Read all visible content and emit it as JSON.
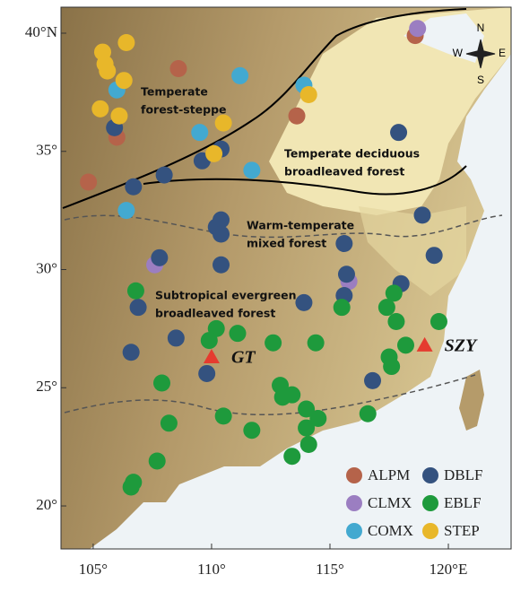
{
  "chart_data": {
    "type": "scatter",
    "xlim": [
      103.64,
      122.65
    ],
    "ylim": [
      18.18,
      41.1
    ],
    "xticks": [
      {
        "value": 105,
        "label": "105°"
      },
      {
        "value": 110,
        "label": "110°"
      },
      {
        "value": 115,
        "label": "115°"
      },
      {
        "value": 120,
        "label": "120°E"
      }
    ],
    "yticks": [
      {
        "value": 20,
        "label": "20°"
      },
      {
        "value": 25,
        "label": "25°"
      },
      {
        "value": 30,
        "label": "30°"
      },
      {
        "value": 35,
        "label": "35°"
      },
      {
        "value": 40,
        "label": "40°N"
      }
    ],
    "series": [
      {
        "name": "ALPM",
        "color": "#b5634a",
        "x": [
          118.6,
          108.6,
          106.0,
          113.6,
          104.8
        ],
        "y": [
          39.9,
          38.5,
          35.6,
          36.5,
          33.7
        ]
      },
      {
        "name": "CLMX",
        "color": "#9b7ec1",
        "x": [
          118.7,
          107.6,
          115.8
        ],
        "y": [
          40.2,
          30.2,
          29.5
        ]
      },
      {
        "name": "COMX",
        "color": "#43a9d0",
        "x": [
          106.0,
          111.2,
          113.9,
          109.5,
          111.7,
          106.4
        ],
        "y": [
          37.6,
          38.2,
          37.8,
          35.8,
          34.2,
          32.5
        ]
      },
      {
        "name": "DBLF",
        "color": "#34527f",
        "x": [
          105.9,
          106.7,
          108.0,
          110.4,
          109.6,
          117.9,
          110.4,
          110.2,
          110.4,
          107.8,
          110.4,
          115.6,
          118.9,
          119.4,
          113.9,
          115.7,
          115.6,
          118.0,
          106.9,
          108.5,
          106.6,
          109.8,
          116.8
        ],
        "y": [
          36.0,
          33.5,
          34.0,
          35.1,
          34.6,
          35.8,
          32.1,
          31.8,
          31.5,
          30.5,
          30.2,
          31.1,
          32.3,
          30.6,
          28.6,
          29.8,
          28.9,
          29.4,
          28.4,
          27.1,
          26.5,
          25.6,
          25.3
        ]
      },
      {
        "name": "EBLF",
        "color": "#1e9a3c",
        "x": [
          106.8,
          110.2,
          109.9,
          111.1,
          112.6,
          114.4,
          115.5,
          117.7,
          117.4,
          117.8,
          119.6,
          118.2,
          117.5,
          117.6,
          107.9,
          110.5,
          108.2,
          111.7,
          112.9,
          113.0,
          113.4,
          114.0,
          114.5,
          114.0,
          114.1,
          113.4,
          116.6,
          107.7,
          106.7,
          106.6
        ],
        "y": [
          29.1,
          27.5,
          27.0,
          27.3,
          26.9,
          26.9,
          28.4,
          29.0,
          28.4,
          27.8,
          27.8,
          26.8,
          26.3,
          25.9,
          25.2,
          23.8,
          23.5,
          23.2,
          25.1,
          24.6,
          24.7,
          24.1,
          23.7,
          23.3,
          22.6,
          22.1,
          23.9,
          21.9,
          21.0,
          20.8
        ]
      },
      {
        "name": "STEP",
        "color": "#e8b72a",
        "x": [
          105.4,
          105.5,
          106.4,
          105.6,
          106.3,
          105.3,
          106.1,
          110.5,
          114.1,
          110.1
        ],
        "y": [
          39.2,
          38.7,
          39.6,
          38.4,
          38.0,
          36.8,
          36.5,
          36.2,
          37.4,
          34.9
        ]
      }
    ],
    "sites": [
      {
        "label": "GT",
        "x": 110.0,
        "y": 26.3,
        "color": "#e53b2f"
      },
      {
        "label": "SZY",
        "x": 119.0,
        "y": 26.8,
        "color": "#e53b2f"
      }
    ],
    "region_labels": [
      [
        "Temperate",
        "forest-steppe"
      ],
      [
        "Temperate deciduous",
        "broadleaved forest"
      ],
      [
        "Warm-temperate",
        "mixed forest"
      ],
      [
        "Subtropical evergreen",
        "broadleaved forest"
      ]
    ],
    "compass": [
      "N",
      "S",
      "W",
      "E"
    ]
  }
}
